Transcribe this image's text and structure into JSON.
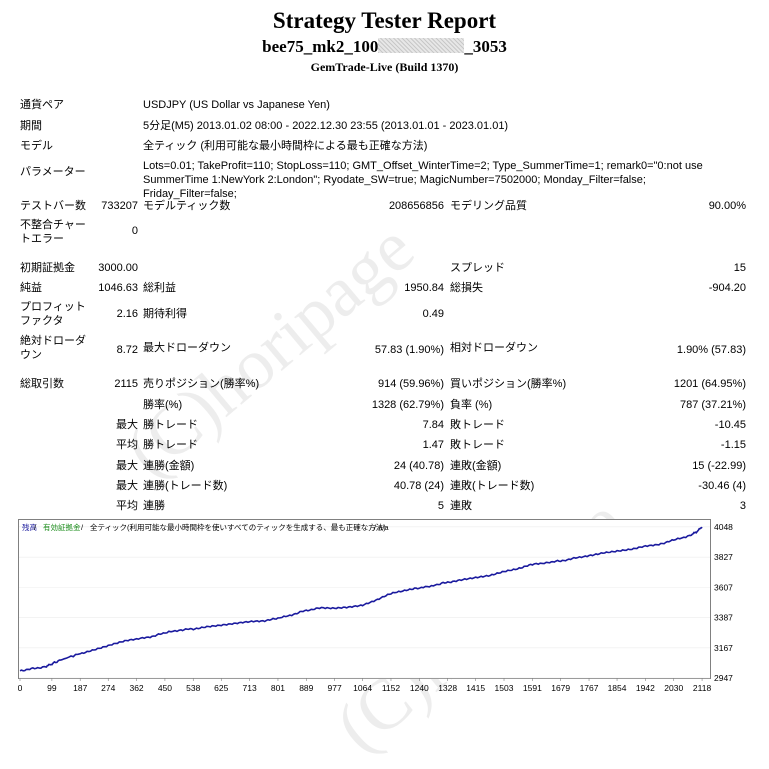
{
  "header": {
    "title": "Strategy Tester Report",
    "ea_prefix": "bee75_mk2_100",
    "ea_suffix": "_3053",
    "build": "GemTrade-Live (Build 1370)"
  },
  "info": {
    "symbol_label": "通貨ペア",
    "symbol_value": "USDJPY (US Dollar vs Japanese Yen)",
    "period_label": "期間",
    "period_value": "5分足(M5) 2013.01.02 08:00 - 2022.12.30 23:55 (2013.01.01 - 2023.01.01)",
    "model_label": "モデル",
    "model_value": "全ティック (利用可能な最小時間枠による最も正確な方法)",
    "params_label": "パラメーター",
    "params_value": "Lots=0.01; TakeProfit=110; StopLoss=110; GMT_Offset_WinterTime=2; Type_SummerTime=1; remark0=\"0:not use SummerTime 1:NewYork 2:London\"; Ryodate_SW=true; MagicNumber=7502000; Monday_Filter=false; Friday_Filter=false;"
  },
  "stats": {
    "bars_label": "テストバー数",
    "bars_value": "733207",
    "ticks_label": "モデルティック数",
    "ticks_value": "208656856",
    "quality_label": "モデリング品質",
    "quality_value": "90.00%",
    "mismatch_label": "不整合チャートエラー",
    "mismatch_value": "0",
    "deposit_label": "初期証拠金",
    "deposit_value": "3000.00",
    "spread_label": "スプレッド",
    "spread_value": "15",
    "netprofit_label": "純益",
    "netprofit_value": "1046.63",
    "grossprofit_label": "総利益",
    "grossprofit_value": "1950.84",
    "grossloss_label": "総損失",
    "grossloss_value": "-904.20",
    "pf_label": "プロフィットファクタ",
    "pf_value": "2.16",
    "expected_label": "期待利得",
    "expected_value": "0.49",
    "absdd_label": "絶対ドローダウン",
    "absdd_value": "8.72",
    "maxdd_label": "最大ドローダウン",
    "maxdd_value": "57.83 (1.90%)",
    "reldd_label": "相対ドローダウン",
    "reldd_value": "1.90% (57.83)",
    "trades_label": "総取引数",
    "trades_value": "2115",
    "short_label": "売りポジション(勝率%)",
    "short_value": "914 (59.96%)",
    "long_label": "買いポジション(勝率%)",
    "long_value": "1201 (64.95%)",
    "winrate_label": "勝率(%)",
    "winrate_value": "1328 (62.79%)",
    "lossrate_label": "負率 (%)",
    "lossrate_value": "787 (37.21%)",
    "max1": "最大",
    "largest_win_label": "勝トレード",
    "largest_win_value": "7.84",
    "largest_loss_label": "敗トレード",
    "largest_loss_value": "-10.45",
    "avg1": "平均",
    "avg_win_label": "勝トレード",
    "avg_win_value": "1.47",
    "avg_loss_label": "敗トレード",
    "avg_loss_value": "-1.15",
    "max2": "最大",
    "cons_win_label": "連勝(金額)",
    "cons_win_value": "24 (40.78)",
    "cons_loss_label": "連敗(金額)",
    "cons_loss_value": "15 (-22.99)",
    "max3": "最大",
    "cons_profit_label": "連勝(トレード数)",
    "cons_profit_value": "40.78 (24)",
    "cons_lossamt_label": "連敗(トレード数)",
    "cons_lossamt_value": "-30.46 (4)",
    "avg2": "平均",
    "avg_cons_win_label": "連勝",
    "avg_cons_win_value": "5",
    "avg_cons_loss_label": "連敗",
    "avg_cons_loss_value": "3"
  },
  "watermark": "(C)horipage",
  "chart_legend": {
    "balance": "残高",
    "separator": " / ",
    "equity": "有効証拠金",
    "model_text": "全ティック(利用可能な最小時間枠を使いすべてのティックを生成する、最も正確な方法)",
    "tail": " / n/a"
  },
  "colors": {
    "line": "#1a1a9e",
    "balance_label": "#1a1a9e",
    "equity_label": "#1a8c1a",
    "border": "#808080"
  },
  "chart_data": {
    "type": "line",
    "title": "",
    "x_ticks": [
      0,
      99,
      187,
      274,
      362,
      450,
      538,
      625,
      713,
      801,
      889,
      977,
      1064,
      1152,
      1240,
      1328,
      1415,
      1503,
      1591,
      1679,
      1767,
      1854,
      1942,
      2030,
      2118
    ],
    "y_ticks": [
      2947,
      3167,
      3387,
      3607,
      3827,
      4048
    ],
    "xlim": [
      0,
      2124
    ],
    "ylim": [
      2947,
      4105
    ],
    "series": [
      {
        "x": [
          0,
          40,
          80,
          99,
          130,
          187,
          230,
          274,
          320,
          362,
          410,
          450,
          500,
          538,
          580,
          625,
          670,
          713,
          760,
          801,
          850,
          889,
          930,
          977,
          1020,
          1064,
          1110,
          1152,
          1200,
          1240,
          1290,
          1328,
          1370,
          1415,
          1460,
          1503,
          1550,
          1591,
          1640,
          1679,
          1720,
          1767,
          1810,
          1854,
          1900,
          1942,
          1990,
          2030,
          2080,
          2100,
          2118
        ],
        "values": [
          3000,
          3015,
          3030,
          3050,
          3082,
          3125,
          3150,
          3180,
          3215,
          3228,
          3250,
          3275,
          3298,
          3305,
          3318,
          3330,
          3345,
          3355,
          3365,
          3380,
          3412,
          3440,
          3455,
          3458,
          3462,
          3475,
          3520,
          3560,
          3590,
          3600,
          3625,
          3645,
          3660,
          3678,
          3695,
          3720,
          3748,
          3772,
          3790,
          3800,
          3818,
          3840,
          3858,
          3870,
          3888,
          3905,
          3925,
          3950,
          3985,
          4010,
          4046
        ]
      }
    ]
  }
}
